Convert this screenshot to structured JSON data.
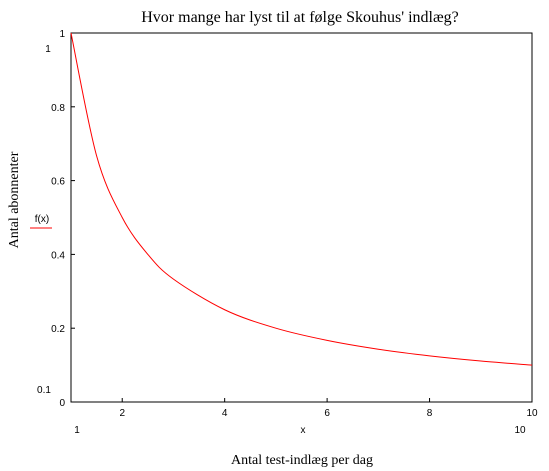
{
  "chart_data": {
    "type": "line",
    "title": "Hvor mange har lyst til at følge Skouhus' indlæg?",
    "xlabel": "Antal test-indlæg per dag",
    "ylabel": "Antal abonnenter",
    "x_variable_label": "x",
    "xlim": [
      1,
      10
    ],
    "ylim": [
      0,
      1
    ],
    "x_ticks": [
      "2",
      "4",
      "6",
      "8",
      "10"
    ],
    "y_ticks": [
      "0",
      "0.2",
      "0.4",
      "0.6",
      "0.8",
      "1"
    ],
    "x_range_labels": {
      "min": "1",
      "max": "10"
    },
    "y_range_labels": {
      "max": "1",
      "min": "0.1"
    },
    "series": [
      {
        "name": "f(x)",
        "color": "#ff0000",
        "x": [
          1,
          1.5,
          2,
          2.5,
          3,
          4,
          5,
          6,
          7,
          8,
          9,
          10
        ],
        "y": [
          1,
          0.667,
          0.5,
          0.4,
          0.333,
          0.25,
          0.2,
          0.167,
          0.143,
          0.125,
          0.111,
          0.1
        ]
      }
    ],
    "grid": false,
    "legend": "left"
  }
}
